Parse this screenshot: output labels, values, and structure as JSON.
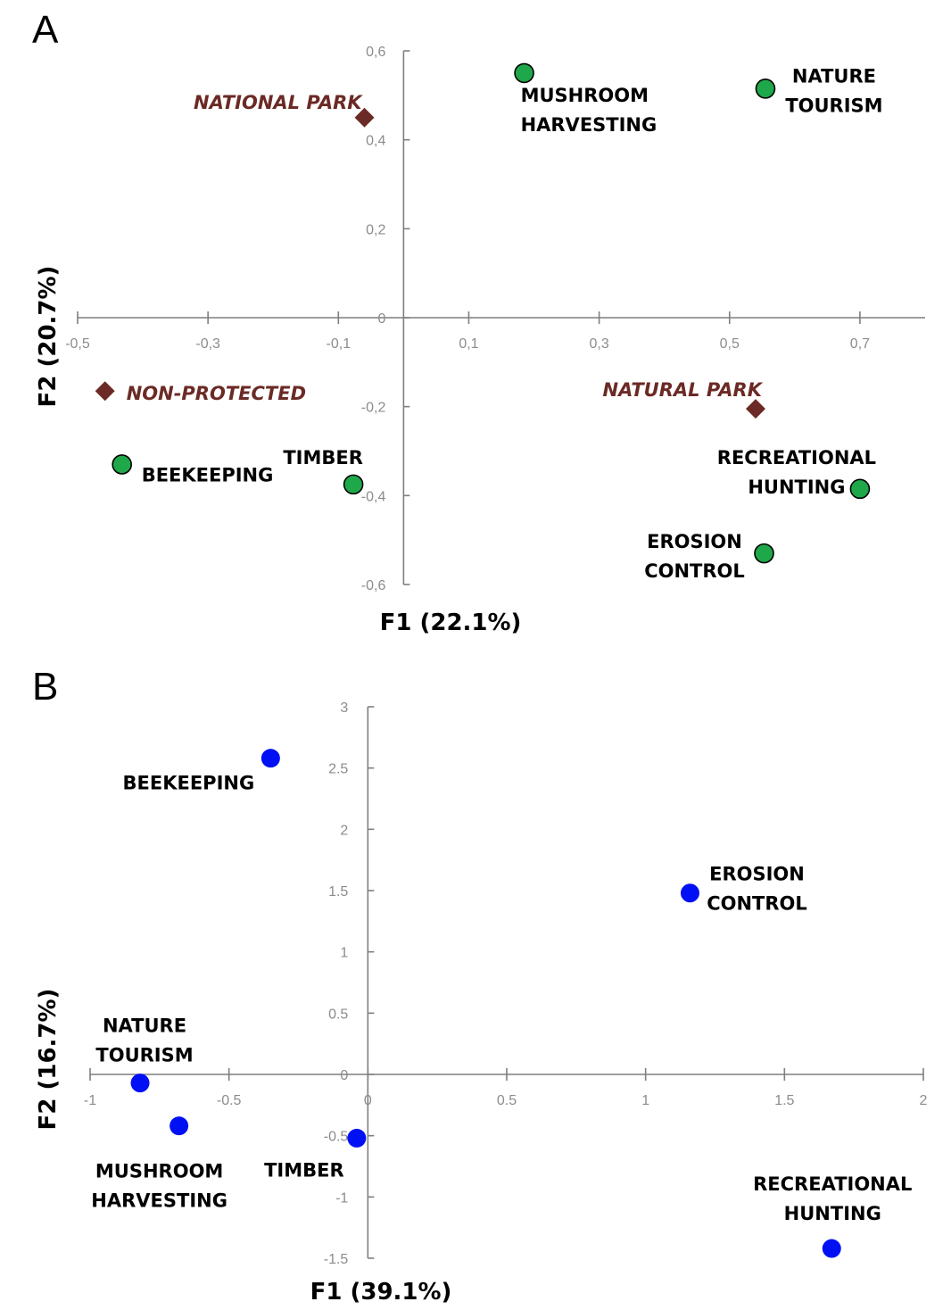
{
  "chart_data": [
    {
      "type": "scatter",
      "panel": "A",
      "xlabel": "F1 (22.1%)",
      "ylabel": "F2 (20.7%)",
      "xlim": [
        -0.5,
        0.8
      ],
      "ylim": [
        -0.6,
        0.6
      ],
      "xticks": [
        -0.5,
        -0.3,
        -0.1,
        0.1,
        0.3,
        0.5,
        0.7
      ],
      "xtick_labels": [
        "-0,5",
        "-0,3",
        "-0,1",
        "0,1",
        "0,3",
        "0,5",
        "0,7"
      ],
      "yticks": [
        0.6,
        0.4,
        0.2,
        0,
        -0.2,
        -0.4,
        -0.6
      ],
      "ytick_labels": [
        "0,6",
        "0,4",
        "0,2",
        "0",
        "-0,2",
        "-0,4",
        "-0,6"
      ],
      "grid": false,
      "series": [
        {
          "marker": "circle",
          "color": "#1fa84a",
          "points": [
            {
              "label": [
                "MUSHROOM",
                "HARVESTING"
              ],
              "x": 0.185,
              "y": 0.55
            },
            {
              "label": [
                "NATURE",
                "TOURISM"
              ],
              "x": 0.555,
              "y": 0.515
            },
            {
              "label": [
                "BEEKEEPING"
              ],
              "x": -0.432,
              "y": -0.33
            },
            {
              "label": [
                "TIMBER"
              ],
              "x": -0.077,
              "y": -0.375
            },
            {
              "label": [
                "RECREATIONAL",
                "HUNTING"
              ],
              "x": 0.7,
              "y": -0.385
            },
            {
              "label": [
                "EROSION",
                "CONTROL"
              ],
              "x": 0.553,
              "y": -0.53
            }
          ]
        },
        {
          "marker": "diamond",
          "color": "#6b2a25",
          "label_style": "italic",
          "points": [
            {
              "label": [
                "NATIONAL PARK"
              ],
              "x": -0.06,
              "y": 0.45
            },
            {
              "label": [
                "NON-PROTECTED"
              ],
              "x": -0.458,
              "y": -0.165
            },
            {
              "label": [
                "NATURAL PARK"
              ],
              "x": 0.54,
              "y": -0.205
            }
          ]
        }
      ]
    },
    {
      "type": "scatter",
      "panel": "B",
      "xlabel": "F1 (39.1%)",
      "ylabel": "F2 (16.7%)",
      "xlim": [
        -1,
        2
      ],
      "ylim": [
        -1.5,
        3
      ],
      "xticks": [
        -1,
        -0.5,
        0,
        0.5,
        1,
        1.5,
        2
      ],
      "xtick_labels": [
        "-1",
        "-0.5",
        "0",
        "0.5",
        "1",
        "1.5",
        "2"
      ],
      "yticks": [
        3,
        2.5,
        2,
        1.5,
        1,
        0.5,
        0,
        -0.5,
        -1,
        -1.5
      ],
      "ytick_labels": [
        "3",
        "2.5",
        "2",
        "1.5",
        "1",
        "0.5",
        "0",
        "-0.5",
        "-1",
        "-1.5"
      ],
      "grid": false,
      "series": [
        {
          "marker": "circle",
          "color": "#0010f5",
          "points": [
            {
              "label": [
                "BEEKEEPING"
              ],
              "x": -0.35,
              "y": 2.58
            },
            {
              "label": [
                "EROSION",
                "CONTROL"
              ],
              "x": 1.16,
              "y": 1.48
            },
            {
              "label": [
                "NATURE",
                "TOURISM"
              ],
              "x": -0.82,
              "y": -0.07
            },
            {
              "label": [
                "MUSHROOM",
                "HARVESTING"
              ],
              "x": -0.68,
              "y": -0.42
            },
            {
              "label": [
                "TIMBER"
              ],
              "x": -0.04,
              "y": -0.52
            },
            {
              "label": [
                "RECREATIONAL",
                "HUNTING"
              ],
              "x": 1.67,
              "y": -1.42
            }
          ]
        }
      ]
    }
  ]
}
